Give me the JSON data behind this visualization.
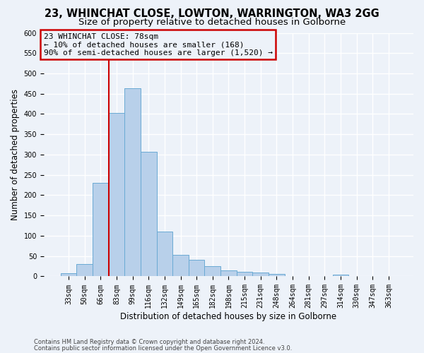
{
  "title": "23, WHINCHAT CLOSE, LOWTON, WARRINGTON, WA3 2GG",
  "subtitle": "Size of property relative to detached houses in Golborne",
  "xlabel": "Distribution of detached houses by size in Golborne",
  "ylabel": "Number of detached properties",
  "categories": [
    "33sqm",
    "50sqm",
    "66sqm",
    "83sqm",
    "99sqm",
    "116sqm",
    "132sqm",
    "149sqm",
    "165sqm",
    "182sqm",
    "198sqm",
    "215sqm",
    "231sqm",
    "248sqm",
    "264sqm",
    "281sqm",
    "297sqm",
    "314sqm",
    "330sqm",
    "347sqm",
    "363sqm"
  ],
  "values": [
    7,
    30,
    230,
    403,
    463,
    307,
    110,
    53,
    40,
    26,
    15,
    12,
    10,
    6,
    0,
    0,
    0,
    5,
    0,
    0,
    0
  ],
  "bar_color": "#b8d0ea",
  "bar_edge_color": "#6aaad4",
  "vline_pos": 2.5,
  "vline_color": "#cc0000",
  "annotation_line1": "23 WHINCHAT CLOSE: 78sqm",
  "annotation_line2": "← 10% of detached houses are smaller (168)",
  "annotation_line3": "90% of semi-detached houses are larger (1,520) →",
  "annotation_box_edgecolor": "#cc0000",
  "ylim": [
    0,
    600
  ],
  "yticks": [
    0,
    50,
    100,
    150,
    200,
    250,
    300,
    350,
    400,
    450,
    500,
    550,
    600
  ],
  "footer1": "Contains HM Land Registry data © Crown copyright and database right 2024.",
  "footer2": "Contains public sector information licensed under the Open Government Licence v3.0.",
  "bg_color": "#edf2f9",
  "grid_color": "#ffffff",
  "title_fontsize": 10.5,
  "subtitle_fontsize": 9.5,
  "tick_fontsize": 7,
  "ylabel_fontsize": 8.5,
  "xlabel_fontsize": 8.5,
  "annotation_fontsize": 8,
  "footer_fontsize": 6
}
